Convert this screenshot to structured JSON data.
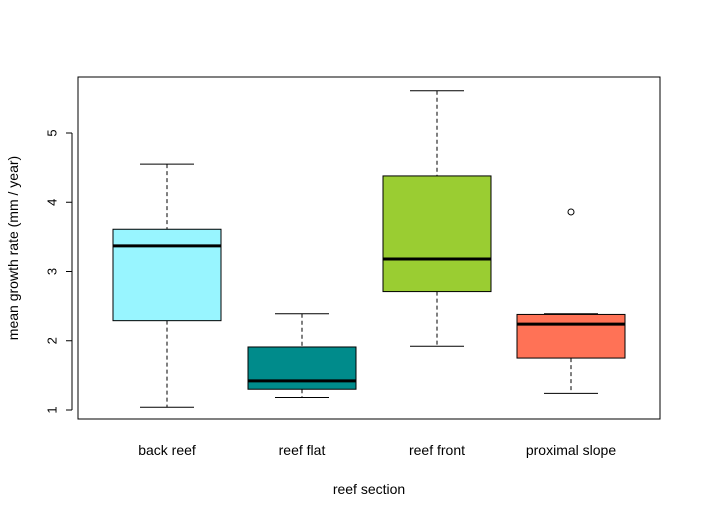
{
  "chart_data": {
    "type": "box",
    "title": "",
    "xlabel": "reef section",
    "ylabel": "mean growth rate (mm / year)",
    "ylim": [
      0.85,
      5.8
    ],
    "yticks": [
      1,
      2,
      3,
      4,
      5
    ],
    "categories": [
      "back reef",
      "reef flat",
      "reef front",
      "proximal slope"
    ],
    "boxes": [
      {
        "category": "back reef",
        "whisker_low": 1.04,
        "q1": 2.29,
        "median": 3.37,
        "q3": 3.61,
        "whisker_high": 4.55,
        "outliers": [],
        "color": "#98F5FF"
      },
      {
        "category": "reef flat",
        "whisker_low": 1.18,
        "q1": 1.3,
        "median": 1.42,
        "q3": 1.91,
        "whisker_high": 2.39,
        "outliers": [],
        "color": "#008B8B"
      },
      {
        "category": "reef front",
        "whisker_low": 1.92,
        "q1": 2.71,
        "median": 3.18,
        "q3": 4.38,
        "whisker_high": 5.61,
        "outliers": [],
        "color": "#9ACD32"
      },
      {
        "category": "proximal slope",
        "whisker_low": 1.24,
        "q1": 1.75,
        "median": 2.24,
        "q3": 2.38,
        "whisker_high": 2.39,
        "outliers": [
          3.86
        ],
        "color": "#FF7256"
      }
    ],
    "grid": false,
    "legend": "none"
  }
}
